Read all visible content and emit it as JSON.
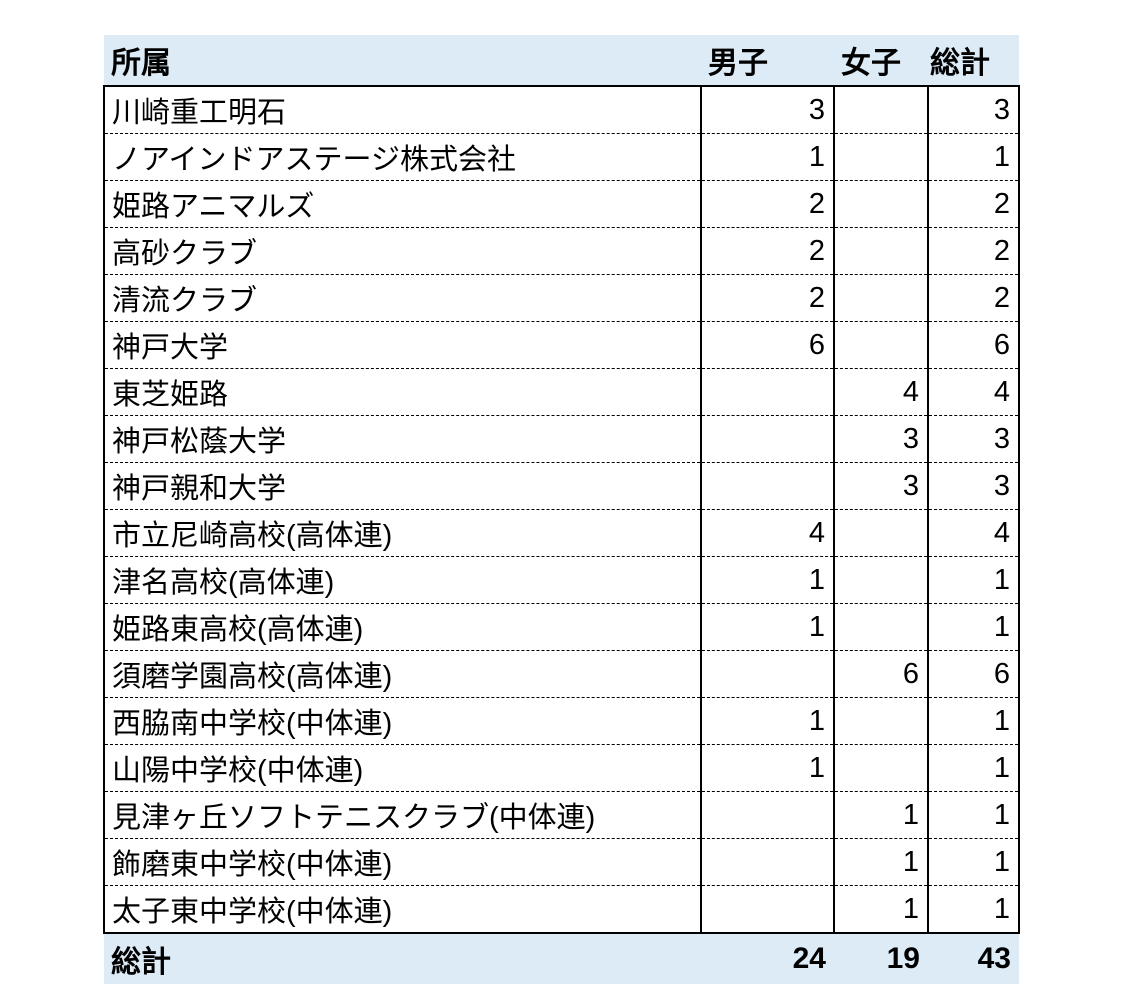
{
  "colors": {
    "header_bg": "#DDEBF7",
    "border": "#000000",
    "text": "#000000",
    "page_bg": "#FFFFFF"
  },
  "table": {
    "columns": [
      "所属",
      "男子",
      "女子",
      "総計"
    ],
    "rows": [
      {
        "name": "川崎重工明石",
        "boys": "3",
        "girls": "",
        "total": "3"
      },
      {
        "name": "ノアインドアステージ株式会社",
        "boys": "1",
        "girls": "",
        "total": "1"
      },
      {
        "name": "姫路アニマルズ",
        "boys": "2",
        "girls": "",
        "total": "2"
      },
      {
        "name": "高砂クラブ",
        "boys": "2",
        "girls": "",
        "total": "2"
      },
      {
        "name": "清流クラブ",
        "boys": "2",
        "girls": "",
        "total": "2"
      },
      {
        "name": "神戸大学",
        "boys": "6",
        "girls": "",
        "total": "6"
      },
      {
        "name": "東芝姫路",
        "boys": "",
        "girls": "4",
        "total": "4"
      },
      {
        "name": "神戸松蔭大学",
        "boys": "",
        "girls": "3",
        "total": "3"
      },
      {
        "name": "神戸親和大学",
        "boys": "",
        "girls": "3",
        "total": "3"
      },
      {
        "name": "市立尼崎高校(高体連)",
        "boys": "4",
        "girls": "",
        "total": "4"
      },
      {
        "name": "津名高校(高体連)",
        "boys": "1",
        "girls": "",
        "total": "1"
      },
      {
        "name": "姫路東高校(高体連)",
        "boys": "1",
        "girls": "",
        "total": "1"
      },
      {
        "name": "須磨学園高校(高体連)",
        "boys": "",
        "girls": "6",
        "total": "6"
      },
      {
        "name": "西脇南中学校(中体連)",
        "boys": "1",
        "girls": "",
        "total": "1"
      },
      {
        "name": "山陽中学校(中体連)",
        "boys": "1",
        "girls": "",
        "total": "1"
      },
      {
        "name": "見津ヶ丘ソフトテニスクラブ(中体連)",
        "boys": "",
        "girls": "1",
        "total": "1"
      },
      {
        "name": "飾磨東中学校(中体連)",
        "boys": "",
        "girls": "1",
        "total": "1"
      },
      {
        "name": "太子東中学校(中体連)",
        "boys": "",
        "girls": "1",
        "total": "1"
      }
    ],
    "footer": {
      "label": "総計",
      "boys": "24",
      "girls": "19",
      "total": "43"
    }
  }
}
